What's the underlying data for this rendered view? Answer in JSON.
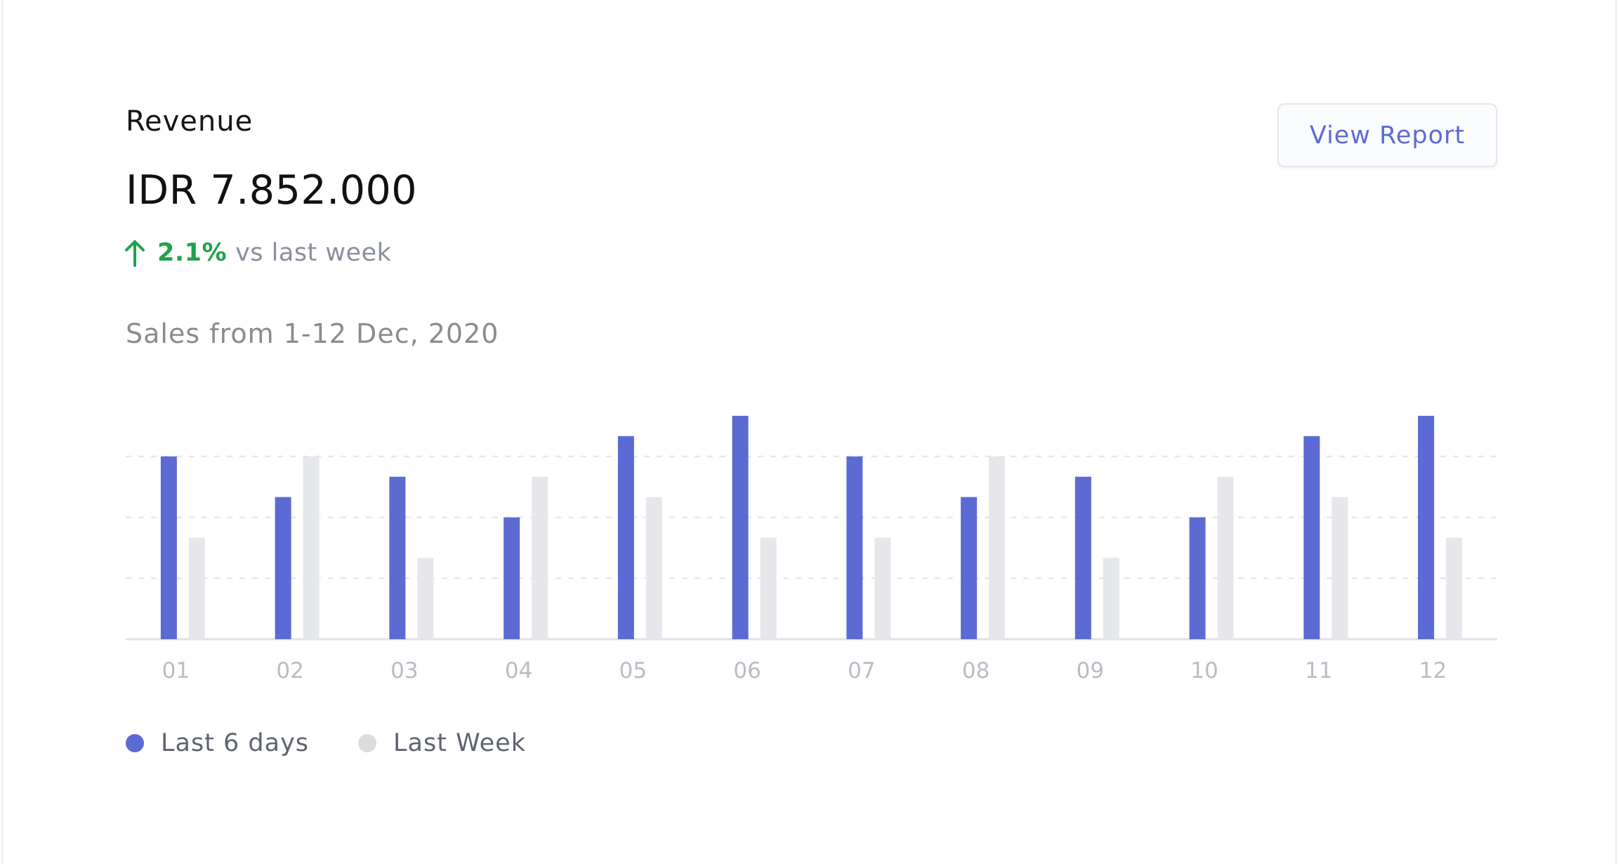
{
  "card": {
    "title": "Revenue",
    "amount": "IDR 7.852.000",
    "delta_percent": "2.1%",
    "delta_suffix": "vs last week",
    "subtitle": "Sales from 1-12 Dec, 2020",
    "button_label": "View Report",
    "icons": {
      "trend": "arrow-up-icon"
    }
  },
  "colors": {
    "primary": "#5c6bd3",
    "secondary": "#e6e7ea",
    "positive": "#1ea34a"
  },
  "chart_data": {
    "type": "bar",
    "categories": [
      "01",
      "02",
      "03",
      "04",
      "05",
      "06",
      "07",
      "08",
      "09",
      "10",
      "11",
      "12"
    ],
    "series": [
      {
        "name": "Last 6 days",
        "values": [
          9,
          7,
          8,
          6,
          10,
          11,
          9,
          7,
          8,
          6,
          10,
          11
        ]
      },
      {
        "name": "Last Week",
        "values": [
          5,
          9,
          4,
          8,
          7,
          5,
          5,
          9,
          4,
          8,
          7,
          5
        ]
      }
    ],
    "ylim": [
      0,
      12
    ],
    "grid": true,
    "legend_position": "bottom-left",
    "title": "",
    "xlabel": "",
    "ylabel": ""
  }
}
